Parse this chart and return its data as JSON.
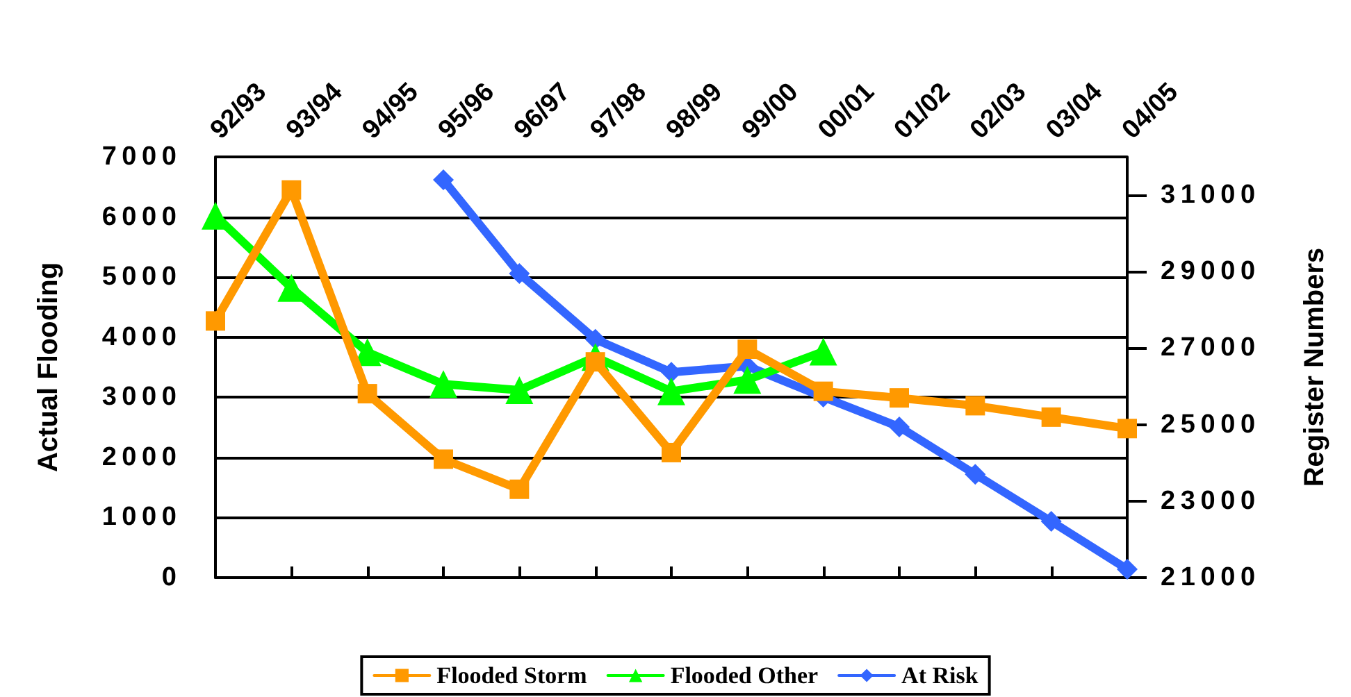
{
  "chart_data": {
    "type": "line",
    "ylabel": "Actual Flooding",
    "y2label": "Register Numbers",
    "categories": [
      "92/93",
      "93/94",
      "94/95",
      "95/96",
      "96/97",
      "97/98",
      "98/99",
      "99/00",
      "00/01",
      "01/02",
      "02/03",
      "03/04",
      "04/05"
    ],
    "series": [
      {
        "name": "Flooded Storm",
        "color": "#ff9900",
        "marker": "square",
        "values": [
          4270,
          6450,
          3060,
          1970,
          1470,
          3590,
          2080,
          3800,
          3100,
          2990,
          2860,
          2670,
          2480
        ]
      },
      {
        "name": "Flooded Other",
        "color": "#00ff00",
        "marker": "triangle",
        "values": [
          6020,
          4820,
          3750,
          3220,
          3120,
          3670,
          3100,
          3290,
          3760,
          null,
          null,
          null,
          null
        ]
      },
      {
        "name": "At Risk",
        "color": "#3366ff",
        "marker": "diamond",
        "axis": "y2",
        "values": [
          null,
          null,
          null,
          31400,
          28950,
          27230,
          26370,
          26530,
          25720,
          24940,
          23700,
          22470,
          21220
        ]
      }
    ],
    "ylim": [
      0,
      7000
    ],
    "yticks": [
      0,
      1000,
      2000,
      3000,
      4000,
      5000,
      6000,
      7000
    ],
    "y2lim": [
      21000,
      32000
    ],
    "y2ticks": [
      21000,
      23000,
      25000,
      27000,
      29000,
      31000
    ],
    "grid": "y",
    "legend": "bottom"
  }
}
